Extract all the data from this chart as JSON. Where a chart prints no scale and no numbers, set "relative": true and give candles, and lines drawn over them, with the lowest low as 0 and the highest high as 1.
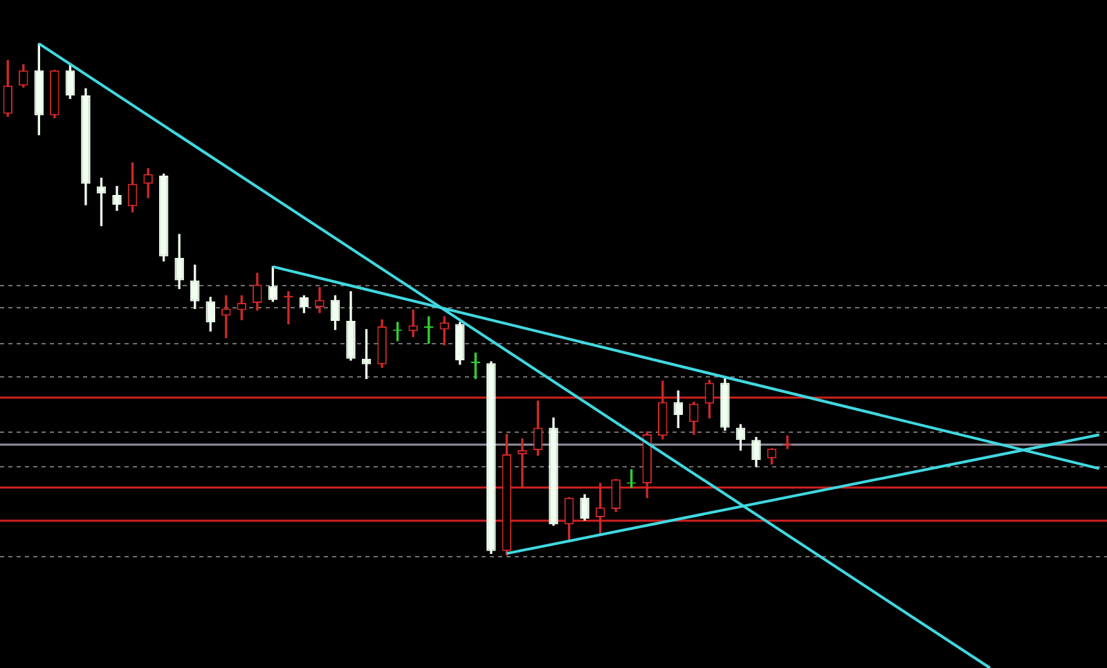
{
  "chart_data": {
    "type": "candlestick",
    "relative": true,
    "categories": [
      null,
      null,
      null,
      null,
      null,
      null,
      null,
      null,
      null,
      null,
      null,
      null,
      null,
      null,
      null,
      null,
      null,
      null,
      null,
      null,
      null,
      null,
      null,
      null,
      null,
      null,
      null,
      null,
      null,
      null,
      null,
      null,
      null,
      null,
      null,
      null,
      null,
      null,
      null,
      null,
      null,
      null,
      null,
      null,
      null,
      null,
      null,
      null,
      null,
      null,
      null,
      null,
      null,
      null,
      null,
      null,
      null,
      null,
      null,
      null,
      null,
      null,
      null,
      null,
      null,
      null,
      null,
      null,
      null,
      null,
      null
    ],
    "ohlc": [
      [
        0.863,
        0.967,
        0.858,
        0.918
      ],
      [
        0.918,
        0.959,
        0.915,
        0.948
      ],
      [
        0.948,
        1.0,
        0.822,
        0.86
      ],
      [
        0.86,
        0.948,
        0.855,
        0.948
      ],
      [
        0.948,
        0.959,
        0.893,
        0.899
      ],
      [
        0.899,
        0.912,
        0.685,
        0.726
      ],
      [
        0.721,
        0.737,
        0.644,
        0.707
      ],
      [
        0.704,
        0.721,
        0.674,
        0.685
      ],
      [
        0.682,
        0.767,
        0.671,
        0.726
      ],
      [
        0.726,
        0.756,
        0.699,
        0.745
      ],
      [
        0.742,
        0.745,
        0.575,
        0.584
      ],
      [
        0.581,
        0.627,
        0.521,
        0.537
      ],
      [
        0.537,
        0.567,
        0.482,
        0.496
      ],
      [
        0.496,
        0.504,
        0.438,
        0.455
      ],
      [
        0.468,
        0.507,
        0.425,
        0.482
      ],
      [
        0.479,
        0.507,
        0.46,
        0.493
      ],
      [
        0.493,
        0.551,
        0.479,
        0.529
      ],
      [
        0.526,
        0.564,
        0.496,
        0.499
      ],
      [
        0.504,
        0.515,
        0.452,
        0.507
      ],
      [
        0.504,
        0.507,
        0.474,
        0.485
      ],
      [
        0.485,
        0.523,
        0.474,
        0.499
      ],
      [
        0.499,
        0.507,
        0.441,
        0.458
      ],
      [
        0.458,
        0.515,
        0.381,
        0.384
      ],
      [
        0.384,
        0.441,
        0.345,
        0.373
      ],
      [
        0.373,
        0.46,
        0.367,
        0.447
      ],
      [
        0.441,
        0.455,
        0.419,
        0.441
      ],
      [
        0.438,
        0.479,
        0.427,
        0.449
      ],
      [
        0.447,
        0.466,
        0.414,
        0.447
      ],
      [
        0.441,
        0.466,
        0.411,
        0.455
      ],
      [
        0.452,
        0.455,
        0.373,
        0.381
      ],
      [
        0.378,
        0.395,
        0.345,
        0.378
      ],
      [
        0.375,
        0.378,
        0.003,
        0.008
      ],
      [
        0.008,
        0.236,
        0.0,
        0.197
      ],
      [
        0.197,
        0.227,
        0.132,
        0.205
      ],
      [
        0.205,
        0.301,
        0.195,
        0.249
      ],
      [
        0.249,
        0.268,
        0.058,
        0.06
      ],
      [
        0.06,
        0.112,
        0.027,
        0.112
      ],
      [
        0.112,
        0.118,
        0.068,
        0.071
      ],
      [
        0.074,
        0.14,
        0.041,
        0.093
      ],
      [
        0.09,
        0.148,
        0.085,
        0.148
      ],
      [
        0.142,
        0.167,
        0.132,
        0.142
      ],
      [
        0.14,
        0.241,
        0.112,
        0.236
      ],
      [
        0.233,
        0.34,
        0.227,
        0.299
      ],
      [
        0.299,
        0.321,
        0.249,
        0.274
      ],
      [
        0.26,
        0.299,
        0.236,
        0.296
      ],
      [
        0.296,
        0.342,
        0.268,
        0.337
      ],
      [
        0.337,
        0.348,
        0.244,
        0.249
      ],
      [
        0.249,
        0.255,
        0.205,
        0.225
      ],
      [
        0.225,
        0.23,
        0.173,
        0.186
      ],
      [
        0.189,
        0.208,
        0.178,
        0.208
      ],
      [
        0.214,
        0.233,
        0.208,
        0.216
      ],
      null,
      null,
      null,
      null,
      null,
      null,
      null,
      null,
      null,
      null,
      null,
      null,
      null,
      null,
      null,
      null,
      null,
      null,
      null,
      null
    ],
    "colors": [
      "#d02828",
      "#d02828",
      "#f0fff0",
      "#d02828",
      "#f0fff0",
      "#f0fff0",
      "#f0fff0",
      "#f0fff0",
      "#d02828",
      "#d02828",
      "#f0fff0",
      "#f0fff0",
      "#f0fff0",
      "#f0fff0",
      "#d02828",
      "#d02828",
      "#d02828",
      "#f0fff0",
      "#d02828",
      "#f0fff0",
      "#d02828",
      "#f0fff0",
      "#f0fff0",
      "#f0fff0",
      "#d02828",
      "#30d030",
      "#d02828",
      "#30d030",
      "#d02828",
      "#f0fff0",
      "#30d030",
      "#f0fff0",
      "#d02828",
      "#d02828",
      "#d02828",
      "#f0fff0",
      "#d02828",
      "#f0fff0",
      "#d02828",
      "#d02828",
      "#30d030",
      "#d02828",
      "#d02828",
      "#f0fff0",
      "#d02828",
      "#d02828",
      "#f0fff0",
      "#f0fff0",
      "#f0fff0",
      "#d02828",
      "#d02828",
      null,
      null,
      null,
      null,
      null,
      null,
      null,
      null,
      null,
      null,
      null,
      null,
      null,
      null,
      null,
      null,
      null,
      null,
      null,
      null
    ],
    "series": [
      {
        "type": "line",
        "color": "#40d8e0",
        "values": [
          null,
          null,
          1.0,
          null,
          null,
          null,
          null,
          null,
          null,
          null,
          null,
          null,
          null,
          null,
          null,
          null,
          null,
          null,
          null,
          null,
          null,
          null,
          null,
          null,
          null,
          null,
          null,
          null,
          null,
          null,
          null,
          null,
          null,
          null,
          null,
          null,
          null,
          null,
          null,
          null,
          null,
          null,
          null,
          null,
          null,
          null,
          null,
          null,
          null,
          null,
          null,
          null,
          null,
          null,
          null,
          null,
          null,
          null,
          null,
          null,
          null,
          null,
          null,
          -0.221,
          null,
          null,
          null,
          null,
          null,
          null,
          null
        ]
      },
      {
        "type": "line",
        "color": "#40d8e0",
        "values": [
          null,
          null,
          null,
          null,
          null,
          null,
          null,
          null,
          null,
          null,
          null,
          null,
          null,
          null,
          null,
          null,
          null,
          0.564,
          null,
          null,
          null,
          null,
          null,
          null,
          null,
          null,
          null,
          null,
          null,
          null,
          null,
          null,
          null,
          null,
          null,
          null,
          null,
          null,
          null,
          null,
          null,
          null,
          null,
          null,
          null,
          null,
          null,
          null,
          null,
          null,
          null,
          null,
          null,
          null,
          null,
          null,
          null,
          null,
          null,
          null,
          null,
          null,
          null,
          null,
          null,
          null,
          null,
          null,
          null,
          null,
          0.169
        ]
      },
      {
        "type": "line",
        "color": "#40d8e0",
        "values": [
          null,
          null,
          null,
          null,
          null,
          null,
          null,
          null,
          null,
          null,
          null,
          null,
          null,
          null,
          null,
          null,
          null,
          null,
          null,
          null,
          null,
          null,
          null,
          null,
          null,
          null,
          null,
          null,
          null,
          null,
          null,
          null,
          0.003,
          null,
          null,
          null,
          null,
          null,
          null,
          null,
          null,
          null,
          null,
          null,
          null,
          null,
          null,
          null,
          null,
          null,
          null,
          null,
          null,
          null,
          null,
          null,
          null,
          null,
          null,
          null,
          null,
          null,
          null,
          null,
          null,
          null,
          null,
          null,
          null,
          null,
          0.235
        ]
      }
    ],
    "ref_lines": [
      {
        "axis": "y",
        "value": 0.529,
        "color": "#707070",
        "line_style": "dashed"
      },
      {
        "axis": "y",
        "value": 0.485,
        "color": "#707070",
        "line_style": "dashed"
      },
      {
        "axis": "y",
        "value": 0.416,
        "color": "#707070",
        "line_style": "dashed"
      },
      {
        "axis": "y",
        "value": 0.351,
        "color": "#707070",
        "line_style": "dashed"
      },
      {
        "axis": "y",
        "value": 0.241,
        "color": "#707070",
        "line_style": "dashed"
      },
      {
        "axis": "y",
        "value": 0.175,
        "color": "#707070",
        "line_style": "dashed"
      },
      {
        "axis": "y",
        "value": -0.003,
        "color": "#707070",
        "line_style": "dashed"
      },
      {
        "axis": "y",
        "value": 0.216,
        "color": "#9090a0",
        "line_style": "solid"
      },
      {
        "axis": "y",
        "value": 0.31,
        "color": "#d02020",
        "line_style": "solid"
      },
      {
        "axis": "y",
        "value": 0.132,
        "color": "#d02020",
        "line_style": "solid"
      },
      {
        "axis": "y",
        "value": 0.068,
        "color": "#d02020",
        "line_style": "solid"
      }
    ]
  }
}
